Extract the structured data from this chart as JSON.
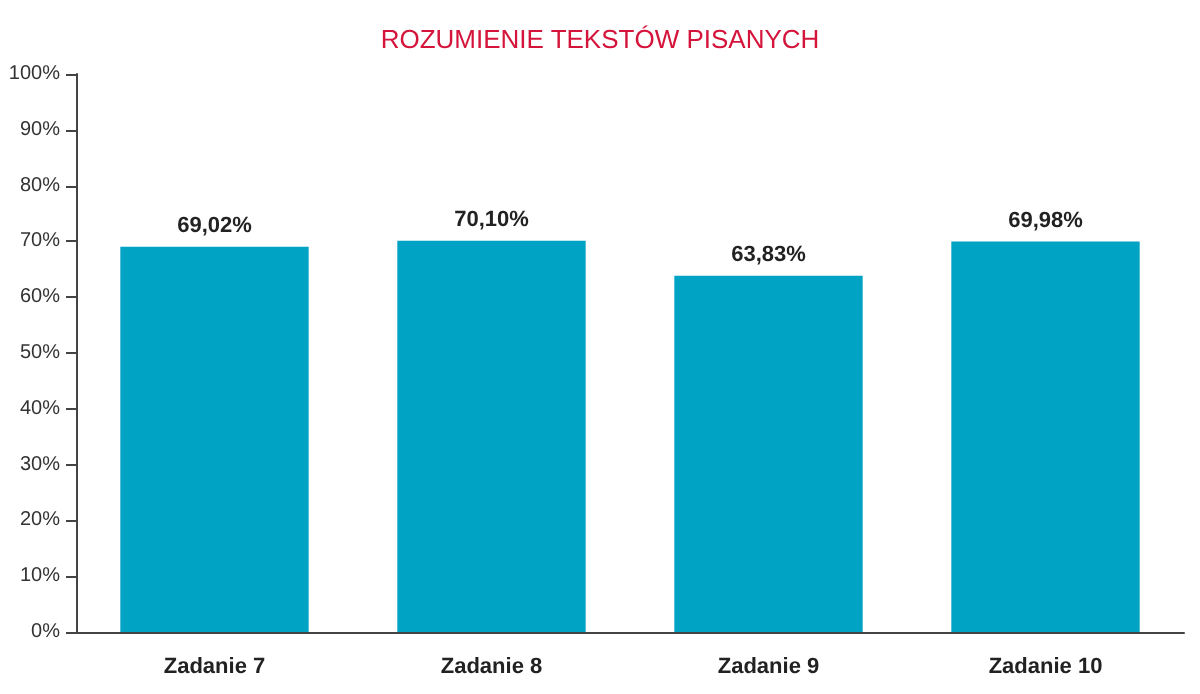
{
  "chart_data": {
    "type": "bar",
    "title": "ROZUMIENIE TEKSTÓW PISANYCH",
    "categories": [
      "Zadanie 7",
      "Zadanie 8",
      "Zadanie 9",
      "Zadanie 10"
    ],
    "values": [
      69.02,
      70.1,
      63.83,
      69.98
    ],
    "value_labels": [
      "69,02%",
      "70,10%",
      "63,83%",
      "69,98%"
    ],
    "color": "#00a3c4",
    "ylim": [
      0,
      100
    ],
    "yticks": [
      {
        "value": 0,
        "label": "0%"
      },
      {
        "value": 10,
        "label": "10%"
      },
      {
        "value": 20,
        "label": "20%"
      },
      {
        "value": 30,
        "label": "30%"
      },
      {
        "value": 40,
        "label": "40%"
      },
      {
        "value": 50,
        "label": "50%"
      },
      {
        "value": 60,
        "label": "60%"
      },
      {
        "value": 70,
        "label": "70%"
      },
      {
        "value": 80,
        "label": "80%"
      },
      {
        "value": 90,
        "label": "90%"
      },
      {
        "value": 100,
        "label": "100%"
      }
    ],
    "grid": false
  }
}
